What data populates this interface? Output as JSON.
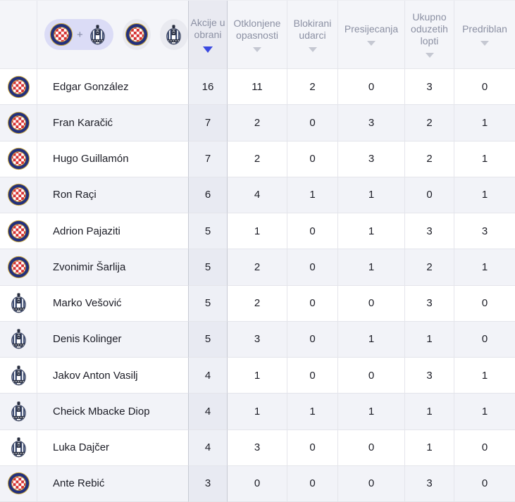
{
  "colors": {
    "sort_active_arrow": "#3b4ae0",
    "sort_inactive_arrow": "#c5c8d2",
    "header_bg": "#f4f5f9",
    "active_header_bg": "#e9eaf1",
    "row_alt_bg": "#f2f3f8",
    "active_col_bg": "#eef0f6",
    "pill_bg": "#dbdcf6",
    "circle_bg": "#e9eaf0",
    "header_text": "#8b90a3",
    "body_text": "#1b1c25"
  },
  "filter": {
    "plus": "+",
    "options": [
      {
        "name": "both-teams",
        "badges": [
          "hajduk",
          "lokomotiva"
        ],
        "selected": true
      },
      {
        "name": "hajduk",
        "badges": [
          "hajduk"
        ],
        "selected": false
      },
      {
        "name": "lokomotiva",
        "badges": [
          "lokomotiva"
        ],
        "selected": false
      }
    ]
  },
  "sort": {
    "column": "Akcije u obrani",
    "direction": "desc"
  },
  "columns": [
    {
      "label": "Akcije u obrani",
      "active": true
    },
    {
      "label": "Otklonjene opasnosti",
      "active": false
    },
    {
      "label": "Blokirani udarci",
      "active": false
    },
    {
      "label": "Presijecanja",
      "active": false
    },
    {
      "label": "Ukupno oduzetih lopti",
      "active": false
    },
    {
      "label": "Predriblan",
      "active": false
    }
  ],
  "rows": [
    {
      "team": "hajduk",
      "player": "Edgar González",
      "values": [
        "16",
        "11",
        "2",
        "0",
        "3",
        "0"
      ]
    },
    {
      "team": "hajduk",
      "player": "Fran Karačić",
      "values": [
        "7",
        "2",
        "0",
        "3",
        "2",
        "1"
      ]
    },
    {
      "team": "hajduk",
      "player": "Hugo Guillamón",
      "values": [
        "7",
        "2",
        "0",
        "3",
        "2",
        "1"
      ]
    },
    {
      "team": "hajduk",
      "player": "Ron Raçi",
      "values": [
        "6",
        "4",
        "1",
        "1",
        "0",
        "1"
      ]
    },
    {
      "team": "hajduk",
      "player": "Adrion Pajaziti",
      "values": [
        "5",
        "1",
        "0",
        "1",
        "3",
        "3"
      ]
    },
    {
      "team": "hajduk",
      "player": "Zvonimir Šarlija",
      "values": [
        "5",
        "2",
        "0",
        "1",
        "2",
        "1"
      ]
    },
    {
      "team": "lokomotiva",
      "player": "Marko Vešović",
      "values": [
        "5",
        "2",
        "0",
        "0",
        "3",
        "0"
      ]
    },
    {
      "team": "lokomotiva",
      "player": "Denis Kolinger",
      "values": [
        "5",
        "3",
        "0",
        "1",
        "1",
        "0"
      ]
    },
    {
      "team": "lokomotiva",
      "player": "Jakov Anton Vasilj",
      "values": [
        "4",
        "1",
        "0",
        "0",
        "3",
        "1"
      ]
    },
    {
      "team": "lokomotiva",
      "player": "Cheick Mbacke Diop",
      "values": [
        "4",
        "1",
        "1",
        "1",
        "1",
        "1"
      ]
    },
    {
      "team": "lokomotiva",
      "player": "Luka Dajčer",
      "values": [
        "4",
        "3",
        "0",
        "0",
        "1",
        "0"
      ]
    },
    {
      "team": "hajduk",
      "player": "Ante Rebić",
      "values": [
        "3",
        "0",
        "0",
        "0",
        "3",
        "0"
      ]
    }
  ]
}
